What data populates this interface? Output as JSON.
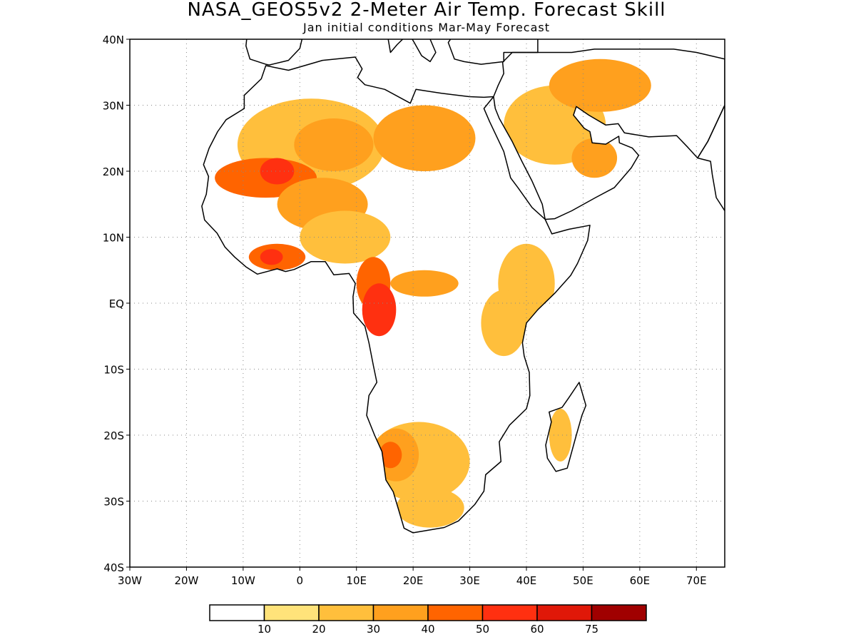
{
  "title": "NASA_GEOS5v2 2-Meter Air Temp. Forecast Skill",
  "subtitle": "Jan initial conditions  Mar-May Forecast",
  "chart_data": {
    "type": "heatmap",
    "projection": "lat-lon",
    "lon_range": [
      -30,
      75
    ],
    "lat_range": [
      -40,
      40
    ],
    "lon_ticks": [
      {
        "v": -30,
        "label": "30W"
      },
      {
        "v": -20,
        "label": "20W"
      },
      {
        "v": -10,
        "label": "10W"
      },
      {
        "v": 0,
        "label": "0"
      },
      {
        "v": 10,
        "label": "10E"
      },
      {
        "v": 20,
        "label": "20E"
      },
      {
        "v": 30,
        "label": "30E"
      },
      {
        "v": 40,
        "label": "40E"
      },
      {
        "v": 50,
        "label": "50E"
      },
      {
        "v": 60,
        "label": "60E"
      },
      {
        "v": 70,
        "label": "70E"
      }
    ],
    "lat_ticks": [
      {
        "v": 40,
        "label": "40N"
      },
      {
        "v": 30,
        "label": "30N"
      },
      {
        "v": 20,
        "label": "20N"
      },
      {
        "v": 10,
        "label": "10N"
      },
      {
        "v": 0,
        "label": "EQ"
      },
      {
        "v": -10,
        "label": "10S"
      },
      {
        "v": -20,
        "label": "20S"
      },
      {
        "v": -30,
        "label": "30S"
      },
      {
        "v": -40,
        "label": "40S"
      }
    ],
    "grid": "dotted",
    "colorbar": {
      "placement": "bottom",
      "colors": [
        "#ffffff",
        "#ffe37a",
        "#ffbf3c",
        "#ffa01e",
        "#ff6400",
        "#ff3010",
        "#e01808",
        "#a00000"
      ],
      "labels": [
        "10",
        "20",
        "30",
        "40",
        "50",
        "60",
        "75"
      ]
    },
    "skill_regions": [
      {
        "level": 2,
        "lat": 24,
        "lon": 2,
        "rlat": 7,
        "rlon": 13
      },
      {
        "level": 3,
        "lat": 24,
        "lon": 6,
        "rlat": 4,
        "rlon": 7
      },
      {
        "level": 3,
        "lat": 25,
        "lon": 22,
        "rlat": 5,
        "rlon": 9
      },
      {
        "level": 4,
        "lat": 19,
        "lon": -6,
        "rlat": 3,
        "rlon": 9
      },
      {
        "level": 5,
        "lat": 20,
        "lon": -4,
        "rlat": 2,
        "rlon": 3
      },
      {
        "level": 3,
        "lat": 15,
        "lon": 4,
        "rlat": 4,
        "rlon": 8
      },
      {
        "level": 2,
        "lat": 10,
        "lon": 8,
        "rlat": 4,
        "rlon": 8
      },
      {
        "level": 4,
        "lat": 7,
        "lon": -4,
        "rlat": 2,
        "rlon": 5
      },
      {
        "level": 5,
        "lat": 7,
        "lon": -5,
        "rlat": 1.2,
        "rlon": 2
      },
      {
        "level": 4,
        "lat": 3,
        "lon": 13,
        "rlat": 4,
        "rlon": 3
      },
      {
        "level": 5,
        "lat": -1,
        "lon": 14,
        "rlat": 4,
        "rlon": 3
      },
      {
        "level": 3,
        "lat": 3,
        "lon": 22,
        "rlat": 2,
        "rlon": 6
      },
      {
        "level": 2,
        "lat": 3,
        "lon": 40,
        "rlat": 6,
        "rlon": 5
      },
      {
        "level": 2,
        "lat": -3,
        "lon": 36,
        "rlat": 5,
        "rlon": 4
      },
      {
        "level": 2,
        "lat": 27,
        "lon": 45,
        "rlat": 6,
        "rlon": 9
      },
      {
        "level": 3,
        "lat": 33,
        "lon": 53,
        "rlat": 4,
        "rlon": 9
      },
      {
        "level": 3,
        "lat": 22,
        "lon": 52,
        "rlat": 3,
        "rlon": 4
      },
      {
        "level": 2,
        "lat": -24,
        "lon": 21,
        "rlat": 6,
        "rlon": 9
      },
      {
        "level": 3,
        "lat": -23,
        "lon": 17,
        "rlat": 4,
        "rlon": 4
      },
      {
        "level": 4,
        "lat": -23,
        "lon": 16,
        "rlat": 2,
        "rlon": 2
      },
      {
        "level": 2,
        "lat": -31,
        "lon": 23,
        "rlat": 3,
        "rlon": 6
      },
      {
        "level": 2,
        "lat": -20,
        "lon": 46,
        "rlat": 4,
        "rlon": 2
      }
    ]
  }
}
